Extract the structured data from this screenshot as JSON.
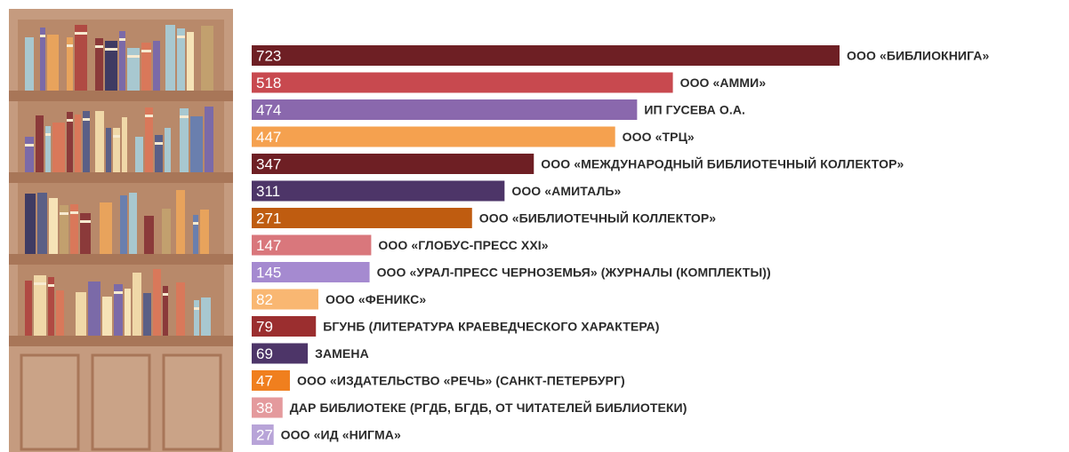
{
  "chart_data": {
    "type": "bar",
    "orientation": "horizontal",
    "grid": false,
    "legend": "none",
    "categories": [
      "ООО «БИБЛИОКНИГА»",
      "ООО «АММИ»",
      "ИП ГУСЕВА О.А.",
      "ООО «ТРЦ»",
      "ООО «МЕЖДУНАРОДНЫЙ  БИБЛИОТЕЧНЫЙ КОЛЛЕКТОР»",
      "ООО «АМИТАЛЬ»",
      "ООО «БИБЛИОТЕЧНЫЙ КОЛЛЕКТОР»",
      "ООО «ГЛОБУС-ПРЕСС XXI»",
      "ООО «УРАЛ-ПРЕСС ЧЕРНОЗЕМЬЯ» (ЖУРНАЛЫ (КОМПЛЕКТЫ))",
      "ООО «ФЕНИКС»",
      "БГУНБ (ЛИТЕРАТУРА КРАЕВЕДЧЕСКОГО ХАРАКТЕРА)",
      "ЗАМЕНА",
      "ООО «ИЗДАТЕЛЬСТВО «РЕЧЬ» (САНКТ-ПЕТЕРБУРГ)",
      "ДАР БИБЛИОТЕКЕ (РГДБ, БГДБ, ОТ ЧИТАТЕЛЕЙ БИБЛИОТЕКИ)",
      "ООО «ИД «НИГМА»"
    ],
    "values": [
      723,
      518,
      474,
      447,
      347,
      311,
      271,
      147,
      145,
      82,
      79,
      69,
      47,
      38,
      27
    ],
    "value_labels": [
      "723",
      "518",
      "474",
      "447",
      "347",
      "311",
      "271",
      "147",
      "145",
      "82",
      "79",
      "69",
      "47",
      "38",
      "27"
    ],
    "colors": [
      "#6e1f24",
      "#c8494f",
      "#8a68ad",
      "#f5a14f",
      "#6e1f24",
      "#4d3568",
      "#bf5c10",
      "#d9777c",
      "#a58ad0",
      "#f9b772",
      "#9b2e2f",
      "#4d3568",
      "#f07f1e",
      "#e49a9d",
      "#b8a4d8"
    ],
    "xlim": [
      0,
      723
    ]
  },
  "decoration": {
    "image": "bookcase-illustration",
    "colors": {
      "frame": "#c59b7f",
      "back": "#ba8a6b",
      "shelf": "#a87658",
      "door": "#caa387"
    }
  }
}
